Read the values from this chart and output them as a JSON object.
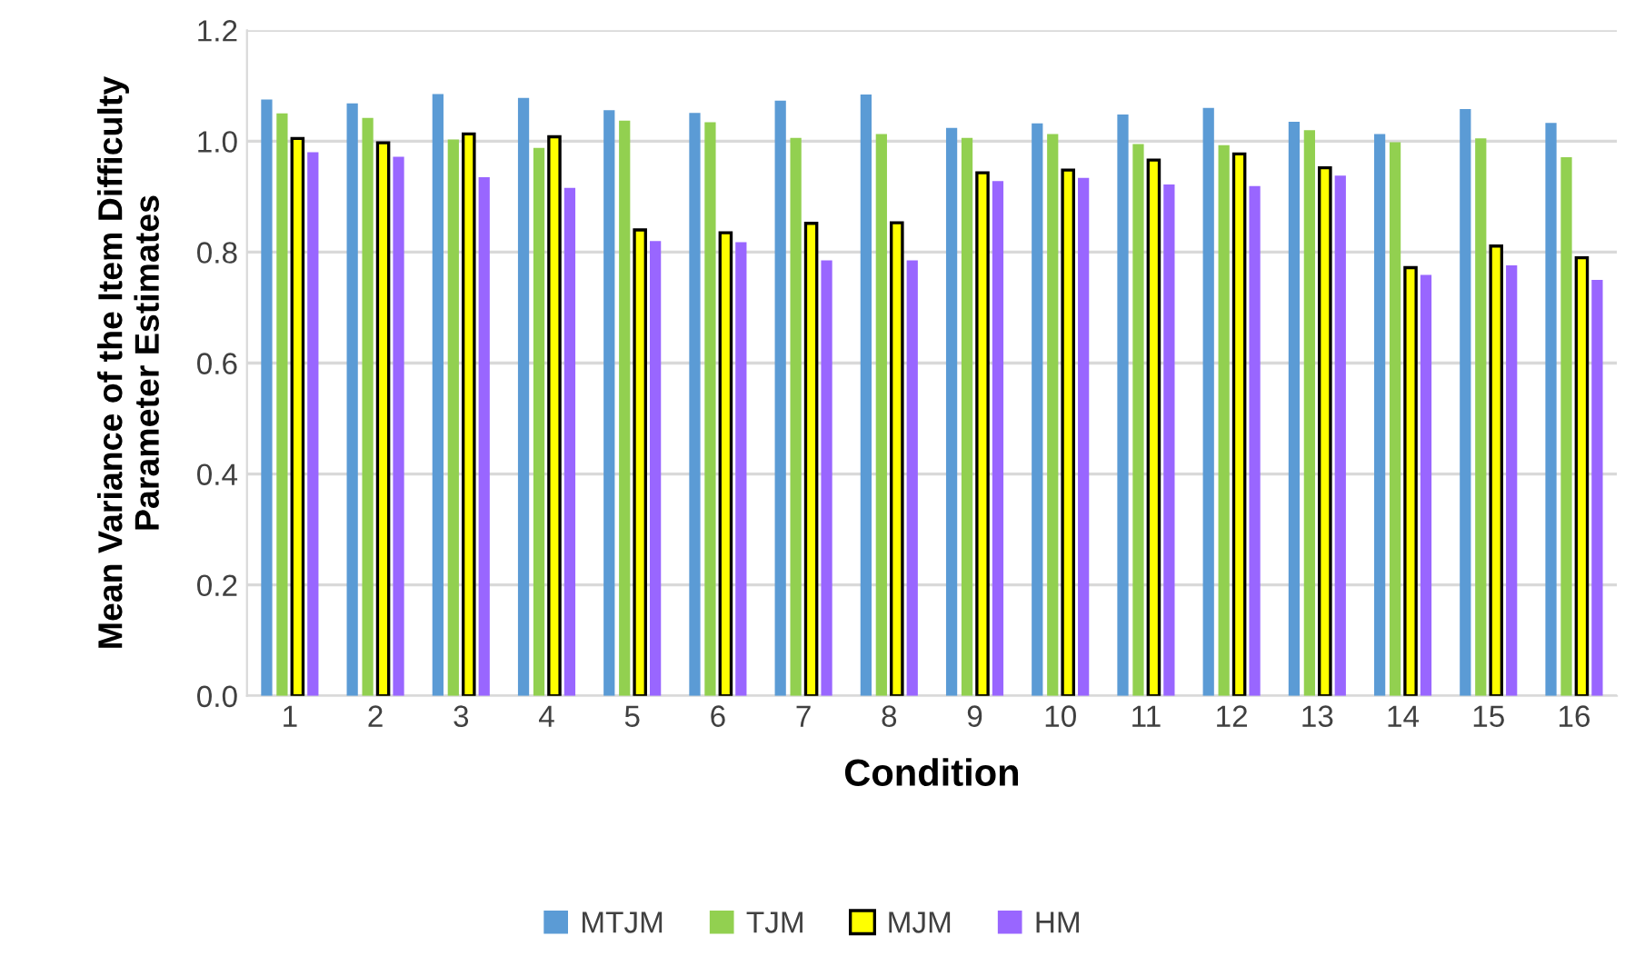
{
  "chart_data": {
    "type": "bar",
    "xlabel": "Condition",
    "ylabel": "Mean Variance of the Item Difficulty\nParameter Estimates",
    "categories": [
      "1",
      "2",
      "3",
      "4",
      "5",
      "6",
      "7",
      "8",
      "9",
      "10",
      "11",
      "12",
      "13",
      "14",
      "15",
      "16"
    ],
    "series": [
      {
        "name": "MTJM",
        "color": "#5b9bd5",
        "values": [
          1.075,
          1.068,
          1.085,
          1.078,
          1.056,
          1.051,
          1.073,
          1.084,
          1.024,
          1.032,
          1.048,
          1.06,
          1.035,
          1.013,
          1.058,
          1.033
        ]
      },
      {
        "name": "TJM",
        "color": "#92d050",
        "values": [
          1.05,
          1.042,
          1.003,
          0.988,
          1.037,
          1.034,
          1.006,
          1.013,
          1.006,
          1.013,
          0.995,
          0.993,
          1.02,
          0.998,
          1.005,
          0.971
        ]
      },
      {
        "name": "MJM",
        "color": "#ffff00",
        "values": [
          1.005,
          0.997,
          1.013,
          1.008,
          0.84,
          0.835,
          0.852,
          0.853,
          0.943,
          0.948,
          0.966,
          0.977,
          0.952,
          0.772,
          0.811,
          0.79
        ]
      },
      {
        "name": "HM",
        "color": "#9966ff",
        "values": [
          0.98,
          0.972,
          0.935,
          0.916,
          0.82,
          0.818,
          0.785,
          0.785,
          0.928,
          0.934,
          0.922,
          0.919,
          0.938,
          0.759,
          0.776,
          0.75
        ]
      }
    ],
    "ylim": [
      0,
      1.2
    ],
    "yticks": [
      {
        "value": 0,
        "label": "0.0"
      },
      {
        "value": 0.2,
        "label": "0.2"
      },
      {
        "value": 0.4,
        "label": "0.4"
      },
      {
        "value": 0.6,
        "label": "0.6"
      },
      {
        "value": 0.8,
        "label": "0.8"
      },
      {
        "value": 1,
        "label": "1.0"
      },
      {
        "value": 1.2,
        "label": "1.2"
      }
    ],
    "grid": "y",
    "legend": "bottom"
  }
}
